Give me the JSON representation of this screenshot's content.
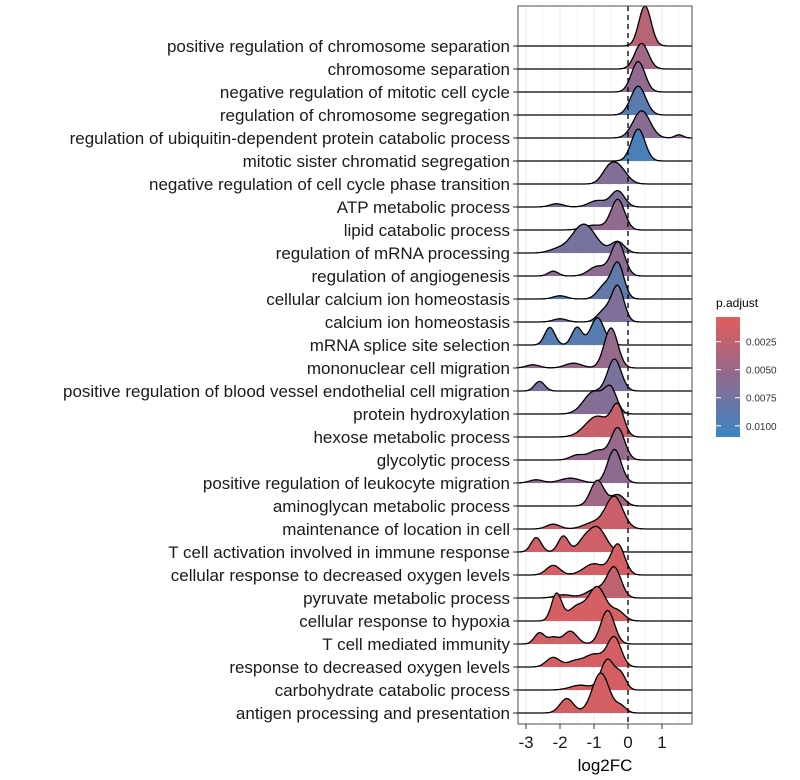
{
  "chart_data": {
    "type": "ridgeline",
    "xlabel": "log2FC",
    "x_ticks": [
      "-3",
      "-2",
      "-1",
      "0",
      "1"
    ],
    "xlim": [
      -3.3,
      1.9
    ],
    "reference_line_x": 0,
    "legend": {
      "title": "p.adjust",
      "position": "right",
      "ticks": [
        "0.0025",
        "0.0050",
        "0.0075",
        "0.0100"
      ],
      "range": [
        0.0003,
        0.011
      ],
      "color_low": "#E15D5C",
      "color_mid": "#8E6B8F",
      "color_high": "#3A85C4"
    },
    "series": [
      {
        "label": "positive regulation of chromosome separation",
        "p_adjust": 0.003,
        "peaks": [
          [
            0.5,
            0.18,
            1.25
          ]
        ]
      },
      {
        "label": "chromosome separation",
        "p_adjust": 0.0045,
        "peaks": [
          [
            0.4,
            0.2,
            0.8
          ]
        ]
      },
      {
        "label": "negative regulation of mitotic cell cycle",
        "p_adjust": 0.0055,
        "peaks": [
          [
            0.3,
            0.2,
            0.95
          ]
        ]
      },
      {
        "label": "regulation of chromosome segregation",
        "p_adjust": 0.009,
        "peaks": [
          [
            0.3,
            0.22,
            0.9
          ]
        ]
      },
      {
        "label": "regulation of ubiquitin-dependent protein catabolic process",
        "p_adjust": 0.006,
        "peaks": [
          [
            0.4,
            0.25,
            0.85
          ],
          [
            1.5,
            0.12,
            0.1
          ]
        ]
      },
      {
        "label": "mitotic sister chromatid segregation",
        "p_adjust": 0.01,
        "peaks": [
          [
            0.3,
            0.2,
            1.0
          ]
        ]
      },
      {
        "label": "negative regulation of cell cycle phase transition",
        "p_adjust": 0.0065,
        "peaks": [
          [
            -0.3,
            0.25,
            0.55
          ],
          [
            -0.6,
            0.2,
            0.3
          ]
        ]
      },
      {
        "label": "ATP metabolic process",
        "p_adjust": 0.0068,
        "peaks": [
          [
            -0.3,
            0.2,
            0.5
          ],
          [
            -0.9,
            0.25,
            0.2
          ],
          [
            -2.1,
            0.2,
            0.1
          ]
        ]
      },
      {
        "label": "lipid catabolic process",
        "p_adjust": 0.0055,
        "peaks": [
          [
            -0.3,
            0.2,
            0.95
          ],
          [
            -1.0,
            0.3,
            0.15
          ]
        ]
      },
      {
        "label": "regulation of mRNA processing",
        "p_adjust": 0.0072,
        "peaks": [
          [
            -1.3,
            0.35,
            0.9
          ],
          [
            -0.3,
            0.2,
            0.35
          ],
          [
            -2.1,
            0.25,
            0.1
          ]
        ]
      },
      {
        "label": "regulation of angiogenesis",
        "p_adjust": 0.0058,
        "peaks": [
          [
            -0.3,
            0.2,
            1.05
          ],
          [
            -0.9,
            0.25,
            0.3
          ],
          [
            -2.2,
            0.15,
            0.15
          ]
        ]
      },
      {
        "label": "cellular calcium ion homeostasis",
        "p_adjust": 0.0085,
        "peaks": [
          [
            -0.3,
            0.18,
            1.1
          ],
          [
            -0.7,
            0.2,
            0.4
          ],
          [
            -2.0,
            0.2,
            0.1
          ]
        ]
      },
      {
        "label": "calcium ion homeostasis",
        "p_adjust": 0.0067,
        "peaks": [
          [
            -0.3,
            0.18,
            1.1
          ],
          [
            -0.7,
            0.2,
            0.35
          ],
          [
            -2.0,
            0.2,
            0.1
          ]
        ]
      },
      {
        "label": "mRNA splice site selection",
        "p_adjust": 0.0092,
        "peaks": [
          [
            -0.9,
            0.2,
            0.85
          ],
          [
            -1.5,
            0.15,
            0.55
          ],
          [
            -2.3,
            0.15,
            0.55
          ]
        ]
      },
      {
        "label": "mononuclear cell migration",
        "p_adjust": 0.0052,
        "peaks": [
          [
            -0.5,
            0.2,
            1.25
          ],
          [
            -1.6,
            0.25,
            0.15
          ],
          [
            -2.8,
            0.2,
            0.1
          ]
        ]
      },
      {
        "label": "positive regulation of blood vessel endothelial cell migration",
        "p_adjust": 0.007,
        "peaks": [
          [
            -0.4,
            0.2,
            1.0
          ],
          [
            -2.6,
            0.15,
            0.3
          ]
        ]
      },
      {
        "label": "protein hydroxylation",
        "p_adjust": 0.0063,
        "peaks": [
          [
            -1.0,
            0.3,
            0.7
          ],
          [
            -0.5,
            0.18,
            0.7
          ]
        ]
      },
      {
        "label": "hexose metabolic process",
        "p_adjust": 0.002,
        "peaks": [
          [
            -0.9,
            0.35,
            0.65
          ],
          [
            -0.3,
            0.18,
            0.9
          ]
        ]
      },
      {
        "label": "glycolytic process",
        "p_adjust": 0.0052,
        "peaks": [
          [
            -0.3,
            0.2,
            1.0
          ],
          [
            -0.9,
            0.25,
            0.3
          ],
          [
            -1.5,
            0.2,
            0.15
          ]
        ]
      },
      {
        "label": "positive regulation of leukocyte migration",
        "p_adjust": 0.0057,
        "peaks": [
          [
            -0.4,
            0.2,
            1.05
          ],
          [
            -1.7,
            0.3,
            0.15
          ],
          [
            -2.7,
            0.2,
            0.1
          ]
        ]
      },
      {
        "label": "aminoglycan metabolic process",
        "p_adjust": 0.0045,
        "peaks": [
          [
            -0.9,
            0.2,
            0.8
          ],
          [
            -0.3,
            0.2,
            0.35
          ]
        ]
      },
      {
        "label": "maintenance of location in cell",
        "p_adjust": 0.0018,
        "peaks": [
          [
            -0.4,
            0.25,
            1.0
          ],
          [
            -1.0,
            0.3,
            0.2
          ],
          [
            -2.2,
            0.2,
            0.15
          ]
        ]
      },
      {
        "label": "T cell activation involved in immune response",
        "p_adjust": 0.0015,
        "peaks": [
          [
            -0.9,
            0.25,
            0.75
          ],
          [
            -1.9,
            0.15,
            0.5
          ],
          [
            -2.7,
            0.15,
            0.45
          ],
          [
            -1.3,
            0.2,
            0.3
          ]
        ]
      },
      {
        "label": "cellular response to decreased oxygen levels",
        "p_adjust": 0.0012,
        "peaks": [
          [
            -0.3,
            0.2,
            0.95
          ],
          [
            -1.0,
            0.3,
            0.35
          ],
          [
            -2.2,
            0.2,
            0.3
          ]
        ]
      },
      {
        "label": "pyruvate metabolic process",
        "p_adjust": 0.0025,
        "peaks": [
          [
            -0.4,
            0.2,
            0.9
          ],
          [
            -0.9,
            0.3,
            0.3
          ],
          [
            -1.9,
            0.25,
            0.1
          ]
        ]
      },
      {
        "label": "cellular response to hypoxia",
        "p_adjust": 0.001,
        "peaks": [
          [
            -0.9,
            0.25,
            1.05
          ],
          [
            -2.1,
            0.15,
            0.85
          ],
          [
            -1.5,
            0.25,
            0.45
          ],
          [
            -0.3,
            0.2,
            0.3
          ]
        ]
      },
      {
        "label": "T cell mediated immunity",
        "p_adjust": 0.0015,
        "peaks": [
          [
            -0.6,
            0.2,
            1.05
          ],
          [
            -1.7,
            0.2,
            0.4
          ],
          [
            -2.6,
            0.15,
            0.35
          ],
          [
            -2.2,
            0.15,
            0.2
          ]
        ]
      },
      {
        "label": "response to decreased oxygen levels",
        "p_adjust": 0.0012,
        "peaks": [
          [
            -0.4,
            0.2,
            0.9
          ],
          [
            -1.0,
            0.3,
            0.4
          ],
          [
            -2.2,
            0.2,
            0.3
          ],
          [
            -1.6,
            0.2,
            0.15
          ]
        ]
      },
      {
        "label": "carbohydrate catabolic process",
        "p_adjust": 0.0012,
        "peaks": [
          [
            -0.6,
            0.2,
            0.95
          ],
          [
            -0.2,
            0.15,
            0.45
          ],
          [
            -1.4,
            0.3,
            0.15
          ]
        ]
      },
      {
        "label": "antigen processing and presentation",
        "p_adjust": 0.0012,
        "peaks": [
          [
            -0.8,
            0.25,
            1.25
          ],
          [
            -1.8,
            0.2,
            0.45
          ],
          [
            -0.2,
            0.15,
            0.2
          ]
        ]
      }
    ]
  }
}
